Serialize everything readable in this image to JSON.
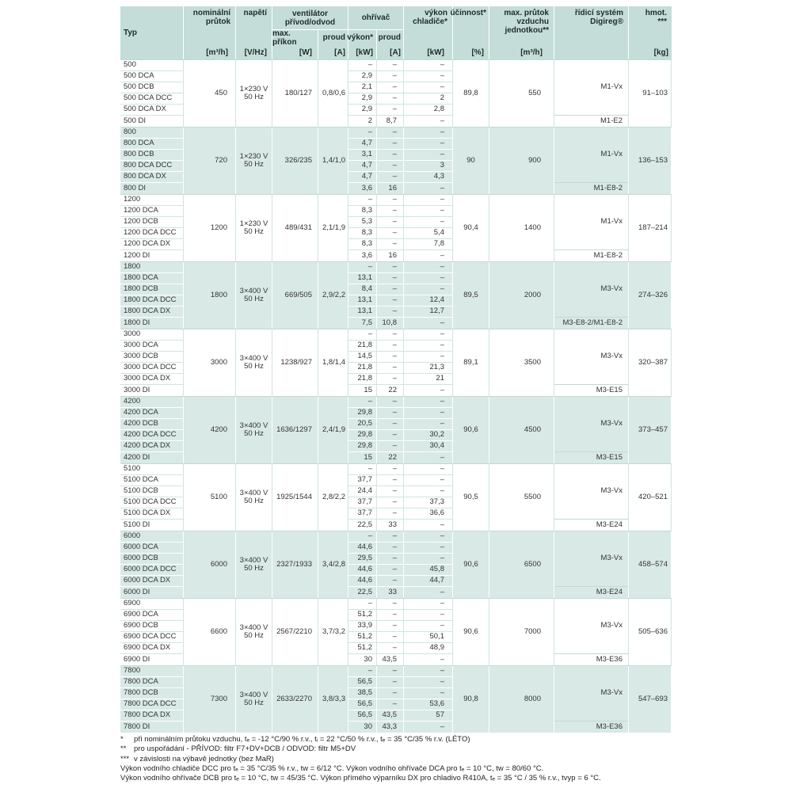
{
  "table": {
    "colors": {
      "header_bg": "#c4ddd9",
      "row_teal": "#d8e9e6",
      "row_white": "#ffffff",
      "separator_on_white": "#cfe5e1",
      "separator_on_teal": "#ffffff",
      "text": "#333333"
    },
    "header": {
      "typ": "Typ",
      "nominal_flow": "nominální\nprůtok",
      "voltage": "napětí",
      "fan_group": "ventilátor\npřívod/odvod",
      "fan_power": "max. příkon",
      "fan_current": "proud",
      "heater_group": "ohřívač",
      "heater_power": "výkon*",
      "heater_current": "proud",
      "cooler_power": "výkon\nchladiče*",
      "efficiency": "účinnost*",
      "max_airflow": "max. průtok\nvzduchu\njednotkou**",
      "control": "řídicí systém\nDigireg®",
      "weight": "hmot.\n***",
      "units": {
        "nominal_flow": "[m³/h]",
        "voltage": "[V/Hz]",
        "fan_power": "[W]",
        "fan_current": "[A]",
        "heater_power": "[kW]",
        "heater_current": "[A]",
        "cooler_power": "[kW]",
        "efficiency": "[%]",
        "max_airflow": "[m³/h]",
        "weight": "[kg]"
      }
    },
    "groups": [
      {
        "flow": "450",
        "voltage": "1×230 V\n50 Hz",
        "fan_power": "180/127",
        "fan_current": "0,8/0,6",
        "efficiency": "89,8",
        "max_airflow": "550",
        "control": "M1-Vx",
        "control_di": "M1-E2",
        "weight": "91–103",
        "rows": [
          [
            "500",
            "–",
            "–",
            "–"
          ],
          [
            "500 DCA",
            "2,9",
            "–",
            "–"
          ],
          [
            "500 DCB",
            "2,1",
            "–",
            "–"
          ],
          [
            "500 DCA DCC",
            "2,9",
            "–",
            "2"
          ],
          [
            "500 DCA DX",
            "2,9",
            "–",
            "2,8"
          ],
          [
            "500 DI",
            "2",
            "8,7",
            "–"
          ]
        ]
      },
      {
        "flow": "720",
        "voltage": "1×230 V\n50 Hz",
        "fan_power": "326/235",
        "fan_current": "1,4/1,0",
        "efficiency": "90",
        "max_airflow": "900",
        "control": "M1-Vx",
        "control_di": "M1-E8-2",
        "weight": "136–153",
        "rows": [
          [
            "800",
            "–",
            "–",
            "–"
          ],
          [
            "800 DCA",
            "4,7",
            "–",
            "–"
          ],
          [
            "800 DCB",
            "3,1",
            "–",
            "–"
          ],
          [
            "800 DCA DCC",
            "4,7",
            "–",
            "3"
          ],
          [
            "800 DCA DX",
            "4,7",
            "–",
            "4,3"
          ],
          [
            "800 DI",
            "3,6",
            "16",
            "–"
          ]
        ]
      },
      {
        "flow": "1200",
        "voltage": "1×230 V\n50 Hz",
        "fan_power": "489/431",
        "fan_current": "2,1/1,9",
        "efficiency": "90,4",
        "max_airflow": "1400",
        "control": "M1-Vx",
        "control_di": "M1-E8-2",
        "weight": "187–214",
        "rows": [
          [
            "1200",
            "–",
            "–",
            "–"
          ],
          [
            "1200 DCA",
            "8,3",
            "–",
            "–"
          ],
          [
            "1200 DCB",
            "5,3",
            "–",
            "–"
          ],
          [
            "1200 DCA DCC",
            "8,3",
            "–",
            "5,4"
          ],
          [
            "1200 DCA DX",
            "8,3",
            "–",
            "7,8"
          ],
          [
            "1200 DI",
            "3,6",
            "16",
            "–"
          ]
        ]
      },
      {
        "flow": "1800",
        "voltage": "3×400 V\n50 Hz",
        "fan_power": "669/505",
        "fan_current": "2,9/2,2",
        "efficiency": "89,5",
        "max_airflow": "2000",
        "control": "M3-Vx",
        "control_di": "M3-E8-2/M1-E8-2",
        "weight": "274–326",
        "rows": [
          [
            "1800",
            "–",
            "–",
            "–"
          ],
          [
            "1800 DCA",
            "13,1",
            "–",
            "–"
          ],
          [
            "1800 DCB",
            "8,4",
            "–",
            "–"
          ],
          [
            "1800 DCA DCC",
            "13,1",
            "–",
            "12,4"
          ],
          [
            "1800 DCA DX",
            "13,1",
            "–",
            "12,7"
          ],
          [
            "1800 DI",
            "7,5",
            "10,8",
            "–"
          ]
        ]
      },
      {
        "flow": "3000",
        "voltage": "3×400 V\n50 Hz",
        "fan_power": "1238/927",
        "fan_current": "1,8/1,4",
        "efficiency": "89,1",
        "max_airflow": "3500",
        "control": "M3-Vx",
        "control_di": "M3-E15",
        "weight": "320–387",
        "rows": [
          [
            "3000",
            "–",
            "–",
            "–"
          ],
          [
            "3000 DCA",
            "21,8",
            "–",
            "–"
          ],
          [
            "3000 DCB",
            "14,5",
            "–",
            "–"
          ],
          [
            "3000 DCA DCC",
            "21,8",
            "–",
            "21,3"
          ],
          [
            "3000 DCA DX",
            "21,8",
            "–",
            "21"
          ],
          [
            "3000 DI",
            "15",
            "22",
            "–"
          ]
        ]
      },
      {
        "flow": "4200",
        "voltage": "3×400 V\n50 Hz",
        "fan_power": "1636/1297",
        "fan_current": "2,4/1,9",
        "efficiency": "90,6",
        "max_airflow": "4500",
        "control": "M3-Vx",
        "control_di": "M3-E15",
        "weight": "373–457",
        "rows": [
          [
            "4200",
            "–",
            "–",
            "–"
          ],
          [
            "4200 DCA",
            "29,8",
            "–",
            "–"
          ],
          [
            "4200 DCB",
            "20,5",
            "–",
            "–"
          ],
          [
            "4200 DCA DCC",
            "29,8",
            "–",
            "30,2"
          ],
          [
            "4200 DCA DX",
            "29,8",
            "–",
            "30,4"
          ],
          [
            "4200 DI",
            "15",
            "22",
            "–"
          ]
        ]
      },
      {
        "flow": "5100",
        "voltage": "3×400 V\n50 Hz",
        "fan_power": "1925/1544",
        "fan_current": "2,8/2,2",
        "efficiency": "90,5",
        "max_airflow": "5500",
        "control": "M3-Vx",
        "control_di": "M3-E24",
        "weight": "420–521",
        "rows": [
          [
            "5100",
            "–",
            "–",
            "–"
          ],
          [
            "5100 DCA",
            "37,7",
            "–",
            "–"
          ],
          [
            "5100 DCB",
            "24,4",
            "–",
            "–"
          ],
          [
            "5100 DCA DCC",
            "37,7",
            "–",
            "37,3"
          ],
          [
            "5100 DCA DX",
            "37,7",
            "–",
            "36,6"
          ],
          [
            "5100 DI",
            "22,5",
            "33",
            "–"
          ]
        ]
      },
      {
        "flow": "6000",
        "voltage": "3×400 V\n50 Hz",
        "fan_power": "2327/1933",
        "fan_current": "3,4/2,8",
        "efficiency": "90,6",
        "max_airflow": "6500",
        "control": "M3-Vx",
        "control_di": "M3-E24",
        "weight": "458–574",
        "rows": [
          [
            "6000",
            "–",
            "–",
            "–"
          ],
          [
            "6000 DCA",
            "44,6",
            "–",
            "–"
          ],
          [
            "6000 DCB",
            "29,5",
            "–",
            "–"
          ],
          [
            "6000 DCA DCC",
            "44,6",
            "–",
            "45,8"
          ],
          [
            "6000 DCA DX",
            "44,6",
            "–",
            "44,7"
          ],
          [
            "6000 DI",
            "22,5",
            "33",
            "–"
          ]
        ]
      },
      {
        "flow": "6600",
        "voltage": "3×400 V\n50 Hz",
        "fan_power": "2567/2210",
        "fan_current": "3,7/3,2",
        "efficiency": "90,6",
        "max_airflow": "7000",
        "control": "M3-Vx",
        "control_di": "M3-E36",
        "weight": "505–636",
        "rows": [
          [
            "6900",
            "–",
            "–",
            "–"
          ],
          [
            "6900 DCA",
            "51,2",
            "–",
            "–"
          ],
          [
            "6900 DCB",
            "33,9",
            "–",
            "–"
          ],
          [
            "6900 DCA DCC",
            "51,2",
            "–",
            "50,1"
          ],
          [
            "6900 DCA DX",
            "51,2",
            "–",
            "48,9"
          ],
          [
            "6900 DI",
            "30",
            "43,5",
            "–"
          ]
        ]
      },
      {
        "flow": "7300",
        "voltage": "3×400 V\n50 Hz",
        "fan_power": "2633/2270",
        "fan_current": "3,8/3,3",
        "efficiency": "90,8",
        "max_airflow": "8000",
        "control": "M3-Vx",
        "control_di": "M3-E36",
        "weight": "547–693",
        "rows": [
          [
            "7800",
            "–",
            "–",
            "–"
          ],
          [
            "7800 DCA",
            "56,5",
            "–",
            "–"
          ],
          [
            "7800 DCB",
            "38,5",
            "–",
            "–"
          ],
          [
            "7800 DCA DCC",
            "56,5",
            "–",
            "53,6"
          ],
          [
            "7800 DCA DX",
            "56,5",
            "43,5",
            "57"
          ],
          [
            "7800 DI",
            "30",
            "43,3",
            "–"
          ]
        ]
      }
    ]
  },
  "footnotes": [
    {
      "marker": "*",
      "text": "při nominálním průtoku vzduchu, tₑ = -12 °C/90 % r.v., tᵢ = 22 °C/50 % r.v., tₑ = 35 °C/35 % r.v. (LÉTO)"
    },
    {
      "marker": "**",
      "text": "pro uspořádání - PŘÍVOD: filtr F7+DV+DCB / ODVOD: filtr M5+DV"
    },
    {
      "marker": "***",
      "text": "v závislosti na výbavě jednotky (bez MaR)"
    },
    {
      "marker": "",
      "text": "Výkon vodního chladiče DCC pro tₑ = 35 °C/35 % r.v., tw = 6/12 °C. Výkon vodního ohřívače DCA pro tₑ = 10 °C, tw = 80/60 °C."
    },
    {
      "marker": "",
      "text": "Výkon vodního ohřívače DCB pro tₑ = 10 °C, tw = 45/35 °C. Výkon přímého výparníku DX pro chladivo R410A, tₑ = 35 °C / 35 % r.v., tvyp = 6 °C."
    }
  ]
}
